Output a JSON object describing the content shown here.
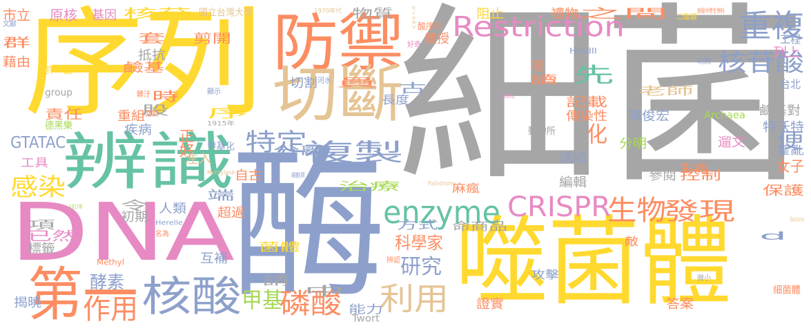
{
  "palette": {
    "gray": "#a6a6a6",
    "yellow": "#ffd92f",
    "purple": "#8da0cb",
    "green": "#66c2a5",
    "orange": "#fc8d62",
    "pink": "#e78ac3",
    "tan": "#e5c494",
    "lime": "#a6d854"
  },
  "words": [
    {
      "t": "細菌",
      "c": "gray"
    },
    {
      "t": "酶",
      "c": "purple"
    },
    {
      "t": "序列",
      "c": "yellow"
    },
    {
      "t": "噬菌體",
      "c": "yellow"
    },
    {
      "t": "DNA",
      "c": "pink"
    },
    {
      "t": "辨識",
      "c": "green"
    },
    {
      "t": "防禦",
      "c": "orange"
    },
    {
      "t": "切斷",
      "c": "tan"
    },
    {
      "t": "第一",
      "c": "orange"
    },
    {
      "t": "核酸",
      "c": "purple"
    },
    {
      "t": "Restriction",
      "c": "pink"
    },
    {
      "t": "重複",
      "c": "purple"
    },
    {
      "t": "enzyme",
      "c": "green"
    },
    {
      "t": "CRISPR",
      "c": "pink"
    },
    {
      "t": "生物",
      "c": "orange"
    },
    {
      "t": "核苷酸",
      "c": "purple"
    },
    {
      "t": "GTATAC",
      "c": "purple"
    },
    {
      "t": "感染",
      "c": "yellow"
    },
    {
      "t": "特定",
      "c": "purple"
    },
    {
      "t": "複製",
      "c": "purple"
    },
    {
      "t": "科學家",
      "c": "orange"
    },
    {
      "t": "研究",
      "c": "purple"
    },
    {
      "t": "利用",
      "c": "tan"
    },
    {
      "t": "作用",
      "c": "orange"
    },
    {
      "t": "酵素",
      "c": "purple"
    },
    {
      "t": "甲基",
      "c": "lime"
    },
    {
      "t": "磷酸",
      "c": "orange"
    },
    {
      "t": "發現",
      "c": "orange"
    },
    {
      "t": "二酯鍵",
      "c": "yellow"
    },
    {
      "t": "先",
      "c": "green"
    },
    {
      "t": "台北",
      "c": "purple"
    },
    {
      "t": "化",
      "c": "orange"
    },
    {
      "t": "便",
      "c": "purple"
    },
    {
      "t": "女子",
      "c": "orange"
    },
    {
      "t": "市立",
      "c": "orange"
    },
    {
      "t": "原核",
      "c": "pink"
    },
    {
      "t": "基因",
      "c": "pink"
    },
    {
      "t": "核苷",
      "c": "yellow"
    },
    {
      "t": "國立台灣大學",
      "c": "tan"
    },
    {
      "t": "1970年代",
      "c": "tan"
    },
    {
      "t": "物質",
      "c": "gray"
    },
    {
      "t": "EcoRV",
      "c": "tan"
    },
    {
      "t": "阻止",
      "c": "yellow"
    },
    {
      "t": "禮物",
      "c": "orange"
    },
    {
      "t": "之間",
      "c": "orange"
    },
    {
      "t": "高級中學生物科",
      "c": "orange"
    },
    {
      "t": "文獻",
      "c": "purple"
    },
    {
      "t": "套",
      "c": "orange"
    },
    {
      "t": "剪開",
      "c": "orange"
    },
    {
      "t": "酸序列",
      "c": "orange"
    },
    {
      "t": "教授",
      "c": "orange"
    },
    {
      "t": "好奇",
      "c": "pink"
    },
    {
      "t": "群",
      "c": "orange"
    },
    {
      "t": "藉由",
      "c": "orange"
    },
    {
      "t": "抵抗",
      "c": "gray"
    },
    {
      "t": "鹼基",
      "c": "orange"
    },
    {
      "t": "許一懿",
      "c": "yellow"
    },
    {
      "t": "切割",
      "c": "purple"
    },
    {
      "t": "河水",
      "c": "purple"
    },
    {
      "t": "員",
      "c": "orange"
    },
    {
      "t": "HindII",
      "c": "purple"
    },
    {
      "t": "工程",
      "c": "purple"
    },
    {
      "t": "列上",
      "c": "pink"
    },
    {
      "t": "切開",
      "c": "purple"
    },
    {
      "t": "嘧",
      "c": "orange"
    },
    {
      "t": "讀",
      "c": "orange"
    },
    {
      "t": "老師",
      "c": "tan"
    },
    {
      "t": "CATATG",
      "c": "pink"
    },
    {
      "t": "古",
      "c": "purple"
    },
    {
      "t": "長度",
      "c": "purple"
    },
    {
      "t": "group",
      "c": "gray"
    },
    {
      "t": "髒汙",
      "c": "orange"
    },
    {
      "t": "時",
      "c": "orange"
    },
    {
      "t": "顯示",
      "c": "purple"
    },
    {
      "t": "股",
      "c": "gray"
    },
    {
      "t": "責任",
      "c": "orange"
    },
    {
      "t": "德黑樂",
      "c": "lime"
    },
    {
      "t": "重組",
      "c": "orange"
    },
    {
      "t": "面對",
      "c": "orange"
    },
    {
      "t": "序",
      "c": "yellow"
    },
    {
      "t": "1915年",
      "c": "gray"
    },
    {
      "t": "疾病",
      "c": "purple"
    },
    {
      "t": "正好",
      "c": "orange"
    },
    {
      "t": "甲基化",
      "c": "purple"
    },
    {
      "t": "記載",
      "c": "orange"
    },
    {
      "t": "傳染性",
      "c": "orange"
    },
    {
      "t": "陳俊宏",
      "c": "purple"
    },
    {
      "t": "Archaea",
      "c": "lime"
    },
    {
      "t": "鹼基對",
      "c": "gray"
    },
    {
      "t": "特沃特",
      "c": "purple"
    },
    {
      "t": "動物所",
      "c": "gray"
    },
    {
      "t": "分明",
      "c": "lime"
    },
    {
      "t": "遛文",
      "c": "pink"
    },
    {
      "t": "霍亂",
      "c": "purple"
    },
    {
      "t": "工具",
      "c": "pink"
    },
    {
      "t": "注入",
      "c": "tan"
    },
    {
      "t": "分離",
      "c": "purple"
    },
    {
      "t": "Methylase",
      "c": "tan"
    },
    {
      "t": "自古",
      "c": "orange"
    },
    {
      "t": "送給",
      "c": "purple"
    },
    {
      "t": "生病",
      "c": "orange"
    },
    {
      "t": "參閱",
      "c": "gray"
    },
    {
      "t": "控制",
      "c": "orange"
    },
    {
      "t": "細胞質",
      "c": "purple"
    },
    {
      "t": "端",
      "c": "purple"
    },
    {
      "t": "治療",
      "c": "lime"
    },
    {
      "t": "Palindrome",
      "c": "tan"
    },
    {
      "t": "麻瘋",
      "c": "orange"
    },
    {
      "t": "編輯",
      "c": "gray"
    },
    {
      "t": "保護",
      "c": "orange"
    },
    {
      "t": "1917年",
      "c": "lime"
    },
    {
      "t": "令",
      "c": "gray"
    },
    {
      "t": "初期",
      "c": "gray"
    },
    {
      "t": "人類",
      "c": "purple"
    },
    {
      "t": "超過",
      "c": "orange"
    },
    {
      "t": "方式",
      "c": "purple"
    },
    {
      "t": "命商品",
      "c": "gray"
    },
    {
      "t": "Bacteria",
      "c": "tan"
    },
    {
      "t": "項",
      "c": "gray"
    },
    {
      "t": "已然",
      "c": "pink"
    },
    {
      "t": "Herelle",
      "c": "purple"
    },
    {
      "t": "名為",
      "c": "orange"
    },
    {
      "t": "敵",
      "c": "orange"
    },
    {
      "t": "d",
      "c": "purple"
    },
    {
      "t": "標籤",
      "c": "gray"
    },
    {
      "t": "菌體",
      "c": "yellow"
    },
    {
      "t": "Methyl",
      "c": "orange"
    },
    {
      "t": "互補",
      "c": "purple"
    },
    {
      "t": "辨認",
      "c": "orange"
    },
    {
      "t": "請",
      "c": "gray"
    },
    {
      "t": "攻擊",
      "c": "purple"
    },
    {
      "t": "微小",
      "c": "gray"
    },
    {
      "t": "中",
      "c": "gray"
    },
    {
      "t": "細菌體",
      "c": "orange"
    },
    {
      "t": "揭曉",
      "c": "purple"
    },
    {
      "t": "證實",
      "c": "orange"
    },
    {
      "t": "能力",
      "c": "purple"
    },
    {
      "t": "Twort",
      "c": "gray"
    },
    {
      "t": "答案",
      "c": "orange"
    },
    {
      "t": "找到",
      "c": "orange"
    }
  ]
}
